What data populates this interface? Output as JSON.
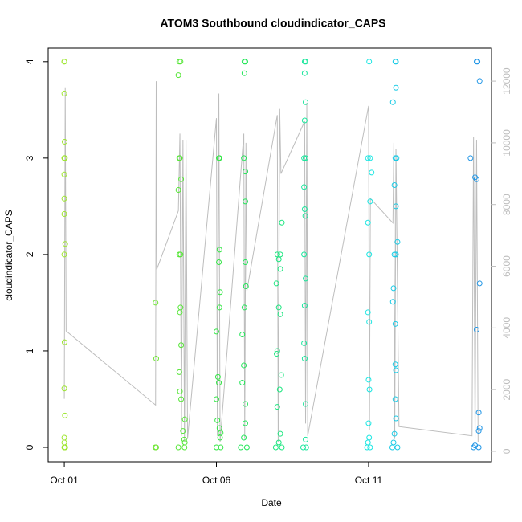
{
  "chart_data": {
    "type": "scatter",
    "title": "ATOM3 Southbound cloudindicator_CAPS",
    "x_label": "Date",
    "y_label": "cloudindicator_CAPS",
    "xlim": [
      -0.53,
      14.04
    ],
    "ylim": [
      -0.15,
      4.14
    ],
    "y2lim": [
      -340,
      13070
    ],
    "xticks": [
      {
        "value": 0,
        "label": "Oct 01"
      },
      {
        "value": 5,
        "label": "Oct 06"
      },
      {
        "value": 10,
        "label": "Oct 11"
      }
    ],
    "yticks": [
      0,
      1,
      2,
      3,
      4
    ],
    "y2ticks": [
      0,
      2000,
      4000,
      6000,
      8000,
      10000,
      12000
    ],
    "series": [
      {
        "color": "#9de62e",
        "x": [
          0,
          0,
          0,
          0.01,
          0,
          0,
          0.02,
          0,
          0,
          0,
          0.03,
          0,
          0.01,
          0,
          0.02,
          0,
          0,
          0.03,
          0.01,
          0
        ],
        "values": [
          4,
          4,
          3.67,
          3.17,
          3,
          3,
          3,
          2.83,
          2.58,
          2.42,
          2.11,
          2,
          1.09,
          0.61,
          0.33,
          0.1,
          0.05,
          0,
          0,
          0
        ]
      },
      {
        "color": "#6ee633",
        "x": [
          3.0,
          3.02,
          2.99,
          3.02
        ],
        "values": [
          1.5,
          0.92,
          0,
          0
        ]
      },
      {
        "color": "#55e636",
        "x": [
          3.78,
          3.82,
          3.75,
          3.8,
          3.78,
          3.84,
          3.75,
          3.78,
          3.82,
          3.82,
          3.8,
          3.84,
          3.78,
          3.8,
          3.84,
          3.96,
          3.9,
          3.94,
          3.96,
          3.75,
          3.95
        ],
        "values": [
          4,
          4,
          3.86,
          3,
          3,
          2.78,
          2.67,
          2,
          2,
          1.45,
          1.4,
          1.06,
          0.78,
          0.58,
          0.5,
          0.29,
          0.17,
          0.08,
          0.05,
          0,
          0
        ]
      },
      {
        "color": "#33e645",
        "x": [
          5.08,
          5.1,
          5.1,
          5.08,
          5.12,
          5.1,
          5.0,
          5.05,
          5.08,
          5.0,
          5.03,
          5.1,
          5.14,
          5.12,
          5.0,
          5.14
        ],
        "values": [
          3,
          3,
          2.05,
          1.92,
          1.61,
          1.45,
          1.2,
          0.73,
          0.67,
          0.5,
          0.28,
          0.2,
          0.15,
          0.1,
          0,
          0
        ]
      },
      {
        "color": "#24e65a",
        "x": [
          5.92,
          5.95,
          5.92,
          5.9,
          5.95,
          5.95,
          5.95,
          5.97,
          5.92,
          5.85,
          5.9,
          5.85,
          5.95,
          5.95,
          5.9,
          5.8,
          6.0
        ],
        "values": [
          4,
          4,
          3.88,
          3,
          2.86,
          2.55,
          1.92,
          1.67,
          1.45,
          1.17,
          0.85,
          0.67,
          0.45,
          0.25,
          0.1,
          0,
          0
        ]
      },
      {
        "color": "#1ae67e",
        "x": [
          7.15,
          7.0,
          7.1,
          7.05,
          7.1,
          6.97,
          7.05,
          7.1,
          7.0,
          6.98,
          7.13,
          7.08,
          7.0,
          7.1,
          7.05,
          6.95,
          7.15
        ],
        "values": [
          2.33,
          2,
          2,
          1.95,
          1.85,
          1.7,
          1.45,
          1.38,
          1.0,
          0.97,
          0.75,
          0.6,
          0.42,
          0.14,
          0.05,
          0,
          0
        ]
      },
      {
        "color": "#1ae69c",
        "x": [
          7.9,
          7.93,
          7.9,
          7.93,
          7.9,
          7.88,
          7.93,
          7.88,
          7.9,
          7.92,
          7.88,
          7.93,
          7.9,
          7.88,
          7.9,
          7.93,
          7.93,
          7.85,
          7.95
        ],
        "values": [
          4,
          4,
          3.88,
          3.58,
          3.39,
          3,
          3,
          2.7,
          2.47,
          2.4,
          2,
          1.75,
          1.47,
          1.08,
          0.92,
          0.45,
          0.08,
          0,
          0
        ]
      },
      {
        "color": "#1ae6e2",
        "x": [
          10.02,
          9.98,
          10.05,
          10.1,
          10.05,
          9.98,
          10.02,
          9.98,
          10.02,
          10.0,
          10.03,
          10.0,
          10.02,
          9.98,
          9.95,
          10.05
        ],
        "values": [
          4,
          3,
          3,
          2.85,
          2.55,
          2.33,
          2,
          1.4,
          1.3,
          0.7,
          0.6,
          0.25,
          0.1,
          0.05,
          0,
          0
        ]
      },
      {
        "color": "#1acbe6",
        "x": [
          10.88,
          10.9,
          10.9,
          10.8,
          10.88,
          10.92,
          10.85,
          10.9,
          10.95,
          10.85,
          10.9,
          10.82,
          10.8,
          10.88,
          10.88,
          10.9,
          10.88,
          10.9,
          10.85,
          10.82,
          10.78,
          10.95
        ],
        "values": [
          4,
          4,
          3.73,
          3.58,
          3,
          3,
          2.72,
          2.5,
          2.13,
          2,
          2,
          1.65,
          1.51,
          1.28,
          0.86,
          0.8,
          0.5,
          0.3,
          0.14,
          0.05,
          0,
          0
        ]
      },
      {
        "color": "#2196e6",
        "x": [
          13.55,
          13.58,
          13.65,
          13.35,
          13.5,
          13.55,
          13.65,
          13.55,
          13.62,
          13.65,
          13.62,
          13.5,
          13.45,
          13.62
        ],
        "values": [
          4,
          4,
          3.8,
          3,
          2.8,
          2.78,
          1.7,
          1.22,
          0.36,
          0.2,
          0.17,
          0.02,
          0,
          0
        ]
      },
      {
        "axis": "y2",
        "color": "#bdbdbd",
        "x": [
          0,
          0.03,
          0.06,
          3.0,
          3.02,
          3.04,
          3.75,
          3.8,
          3.85,
          3.9,
          3.95,
          4.0,
          4.05,
          5.0,
          5.03,
          5.08,
          5.12,
          5.9,
          5.93,
          5.97,
          6.0,
          7.0,
          7.03,
          7.08,
          7.12,
          7.9,
          7.93,
          7.97,
          8.0,
          10.0,
          10.03,
          10.06,
          10.8,
          10.83,
          10.86,
          10.9,
          11.0,
          13.4,
          13.45,
          13.5,
          13.55,
          13.6
        ],
        "values": [
          1700,
          11800,
          3900,
          1500,
          12000,
          5900,
          7800,
          10300,
          500,
          10100,
          300,
          10100,
          400,
          10800,
          500,
          11600,
          300,
          10300,
          400,
          10000,
          5200,
          10900,
          300,
          11100,
          9000,
          10700,
          900,
          11300,
          500,
          11200,
          700,
          8200,
          7400,
          10000,
          400,
          9800,
          800,
          500,
          10200,
          400,
          10100,
          300
        ]
      }
    ]
  }
}
